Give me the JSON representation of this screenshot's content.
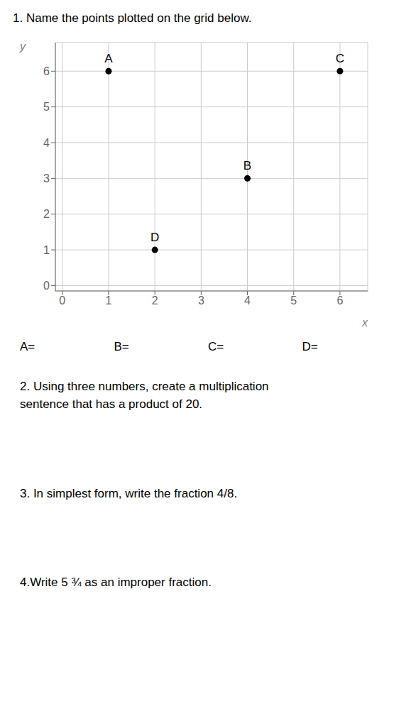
{
  "chart_data": {
    "type": "scatter",
    "title": "1.  Name the points plotted on the grid below.",
    "categories": [
      "A",
      "B",
      "C",
      "D"
    ],
    "x": [
      1,
      4,
      6,
      2
    ],
    "values": [
      6,
      3,
      6,
      1
    ],
    "color": "#000000",
    "xlabel": "x",
    "ylabel": "y",
    "xlim": [
      -0.15,
      6.6
    ],
    "ylim": [
      -0.15,
      6.8
    ],
    "xticks": [
      0,
      1,
      2,
      3,
      4,
      5,
      6
    ],
    "yticks": [
      0,
      1,
      2,
      3,
      4,
      5,
      6
    ],
    "grid": true,
    "annotations": [
      "A=",
      "B=",
      "C=",
      "D=",
      "2.   Using three numbers, create a multiplication\nsentence that has a product of 20.",
      "3.  In simplest form, write the fraction 4/8.",
      "4.Write 5 ¾ as an improper fraction."
    ]
  }
}
